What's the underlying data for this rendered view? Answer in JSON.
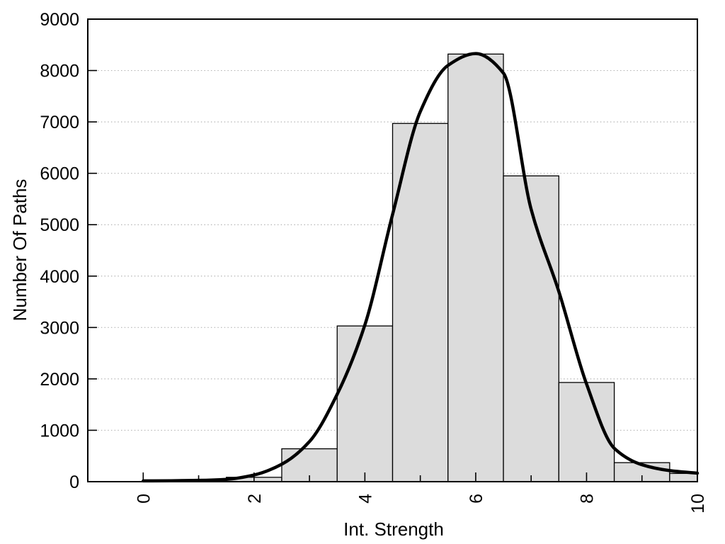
{
  "chart_data": {
    "type": "bar",
    "subtype": "histogram-with-fitted-curve",
    "title": "",
    "xlabel": "Int. Strength",
    "ylabel": "Number Of Paths",
    "xlim": [
      -1,
      10
    ],
    "ylim": [
      0,
      9000
    ],
    "x_major_ticks": [
      0,
      2,
      4,
      6,
      8,
      10
    ],
    "x_minor_ticks": [
      1,
      3,
      5,
      7,
      9
    ],
    "y_ticks": [
      0,
      1000,
      2000,
      3000,
      4000,
      5000,
      6000,
      7000,
      8000,
      9000
    ],
    "y_gridlines": [
      1000,
      2000,
      3000,
      4000,
      5000,
      6000,
      7000,
      8000
    ],
    "grid": "dotted-horizontal",
    "legend": false,
    "histogram": {
      "bin_width": 1,
      "centers": [
        2,
        3,
        4,
        5,
        6,
        7,
        8,
        9,
        10
      ],
      "values": [
        85,
        640,
        3030,
        6970,
        8320,
        5950,
        1930,
        370,
        160
      ]
    },
    "curve": {
      "name": "fitted-density-curve",
      "points": [
        [
          0,
          15
        ],
        [
          0.5,
          18
        ],
        [
          1,
          25
        ],
        [
          1.5,
          45
        ],
        [
          2,
          130
        ],
        [
          2.5,
          340
        ],
        [
          3,
          780
        ],
        [
          3.5,
          1700
        ],
        [
          4,
          3050
        ],
        [
          4.5,
          5200
        ],
        [
          5,
          7200
        ],
        [
          5.5,
          8100
        ],
        [
          6,
          8330
        ],
        [
          6.5,
          7950
        ],
        [
          7,
          5300
        ],
        [
          7.5,
          3700
        ],
        [
          8,
          1900
        ],
        [
          8.5,
          650
        ],
        [
          9,
          330
        ],
        [
          9.5,
          215
        ],
        [
          10,
          165
        ]
      ]
    },
    "colors": {
      "background": "#ffffff",
      "bar_fill": "#dcdcdc",
      "bar_edge": "#000000",
      "curve": "#000000",
      "grid": "#b5b5b5",
      "axis": "#000000",
      "text": "#000000"
    }
  }
}
